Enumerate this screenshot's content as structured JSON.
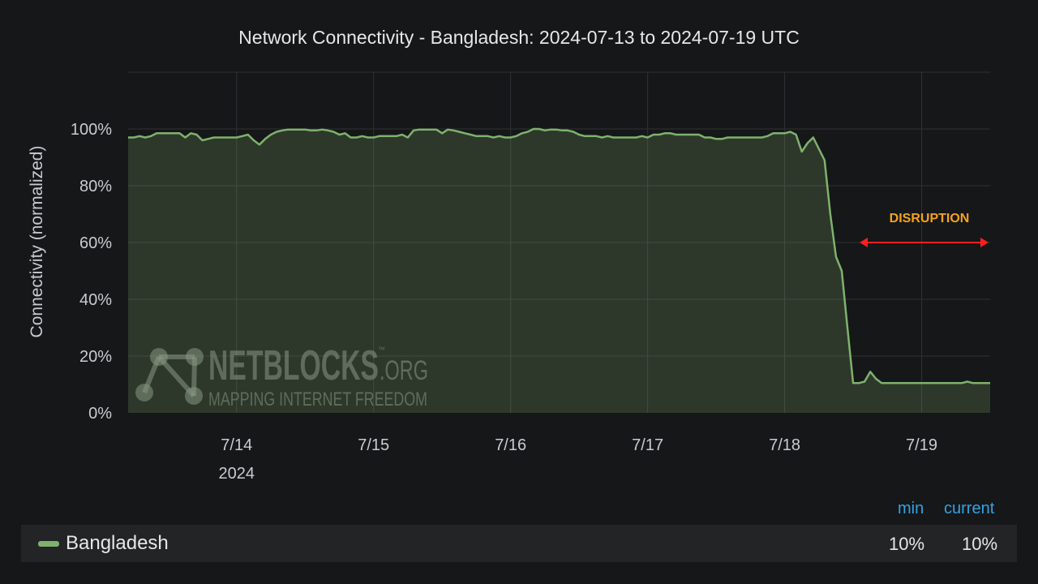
{
  "chart_data": {
    "type": "area",
    "title": "Network Connectivity - Bangladesh: 2024-07-13 to 2024-07-19 UTC",
    "ylabel": "Connectivity (normalized)",
    "xlabel": "",
    "x_range": [
      "2024-07-13T05:00",
      "2024-07-19T12:00"
    ],
    "ylim": [
      0,
      100
    ],
    "y_ticks": [
      "0%",
      "20%",
      "40%",
      "60%",
      "80%",
      "100%"
    ],
    "x_ticks": [
      {
        "date": "2024-07-14T00:00",
        "label": "7/14",
        "sublabel": "2024"
      },
      {
        "date": "2024-07-15T00:00",
        "label": "7/15"
      },
      {
        "date": "2024-07-16T00:00",
        "label": "7/16"
      },
      {
        "date": "2024-07-17T00:00",
        "label": "7/17"
      },
      {
        "date": "2024-07-18T00:00",
        "label": "7/18"
      },
      {
        "date": "2024-07-19T00:00",
        "label": "7/19"
      }
    ],
    "grid": true,
    "series": [
      {
        "name": "Bangladesh",
        "color": "#7eb26d",
        "points": [
          [
            "2024-07-13T05:00",
            97
          ],
          [
            "2024-07-13T06:00",
            97
          ],
          [
            "2024-07-13T07:00",
            97.5
          ],
          [
            "2024-07-13T08:00",
            97
          ],
          [
            "2024-07-13T09:00",
            97.5
          ],
          [
            "2024-07-13T10:00",
            98.5
          ],
          [
            "2024-07-13T11:00",
            98.5
          ],
          [
            "2024-07-13T12:00",
            98.5
          ],
          [
            "2024-07-13T13:00",
            98.5
          ],
          [
            "2024-07-13T14:00",
            98.5
          ],
          [
            "2024-07-13T15:00",
            97
          ],
          [
            "2024-07-13T16:00",
            98.5
          ],
          [
            "2024-07-13T17:00",
            98
          ],
          [
            "2024-07-13T18:00",
            96
          ],
          [
            "2024-07-13T19:00",
            96.5
          ],
          [
            "2024-07-13T20:00",
            97
          ],
          [
            "2024-07-13T21:00",
            97
          ],
          [
            "2024-07-13T22:00",
            97
          ],
          [
            "2024-07-13T23:00",
            97
          ],
          [
            "2024-07-14T00:00",
            97
          ],
          [
            "2024-07-14T01:00",
            97.5
          ],
          [
            "2024-07-14T02:00",
            98
          ],
          [
            "2024-07-14T03:00",
            96
          ],
          [
            "2024-07-14T04:00",
            94.5
          ],
          [
            "2024-07-14T05:00",
            96.5
          ],
          [
            "2024-07-14T06:00",
            98
          ],
          [
            "2024-07-14T07:00",
            99
          ],
          [
            "2024-07-14T08:00",
            99.5
          ],
          [
            "2024-07-14T09:00",
            99.8
          ],
          [
            "2024-07-14T10:00",
            99.8
          ],
          [
            "2024-07-14T11:00",
            99.8
          ],
          [
            "2024-07-14T12:00",
            99.8
          ],
          [
            "2024-07-14T13:00",
            99.5
          ],
          [
            "2024-07-14T14:00",
            99.5
          ],
          [
            "2024-07-14T15:00",
            99.8
          ],
          [
            "2024-07-14T16:00",
            99.5
          ],
          [
            "2024-07-14T17:00",
            99
          ],
          [
            "2024-07-14T18:00",
            98
          ],
          [
            "2024-07-14T19:00",
            98.5
          ],
          [
            "2024-07-14T20:00",
            97
          ],
          [
            "2024-07-14T21:00",
            97
          ],
          [
            "2024-07-14T22:00",
            97.5
          ],
          [
            "2024-07-14T23:00",
            97
          ],
          [
            "2024-07-15T00:00",
            97
          ],
          [
            "2024-07-15T01:00",
            97.5
          ],
          [
            "2024-07-15T02:00",
            97.5
          ],
          [
            "2024-07-15T03:00",
            97.5
          ],
          [
            "2024-07-15T04:00",
            97.5
          ],
          [
            "2024-07-15T05:00",
            98
          ],
          [
            "2024-07-15T06:00",
            97
          ],
          [
            "2024-07-15T07:00",
            99.5
          ],
          [
            "2024-07-15T08:00",
            99.8
          ],
          [
            "2024-07-15T09:00",
            99.8
          ],
          [
            "2024-07-15T10:00",
            99.8
          ],
          [
            "2024-07-15T11:00",
            99.8
          ],
          [
            "2024-07-15T12:00",
            98.5
          ],
          [
            "2024-07-15T13:00",
            99.8
          ],
          [
            "2024-07-15T14:00",
            99.5
          ],
          [
            "2024-07-15T15:00",
            99
          ],
          [
            "2024-07-15T16:00",
            98.5
          ],
          [
            "2024-07-15T17:00",
            98
          ],
          [
            "2024-07-15T18:00",
            97.5
          ],
          [
            "2024-07-15T19:00",
            97.5
          ],
          [
            "2024-07-15T20:00",
            97.5
          ],
          [
            "2024-07-15T21:00",
            97
          ],
          [
            "2024-07-15T22:00",
            97.5
          ],
          [
            "2024-07-15T23:00",
            97
          ],
          [
            "2024-07-16T00:00",
            97
          ],
          [
            "2024-07-16T01:00",
            97.5
          ],
          [
            "2024-07-16T02:00",
            98.5
          ],
          [
            "2024-07-16T03:00",
            99
          ],
          [
            "2024-07-16T04:00",
            100
          ],
          [
            "2024-07-16T05:00",
            100
          ],
          [
            "2024-07-16T06:00",
            99.5
          ],
          [
            "2024-07-16T07:00",
            99.8
          ],
          [
            "2024-07-16T08:00",
            99.8
          ],
          [
            "2024-07-16T09:00",
            99.5
          ],
          [
            "2024-07-16T10:00",
            99.5
          ],
          [
            "2024-07-16T11:00",
            99
          ],
          [
            "2024-07-16T12:00",
            98
          ],
          [
            "2024-07-16T13:00",
            97.5
          ],
          [
            "2024-07-16T14:00",
            97.5
          ],
          [
            "2024-07-16T15:00",
            97.5
          ],
          [
            "2024-07-16T16:00",
            97
          ],
          [
            "2024-07-16T17:00",
            97.5
          ],
          [
            "2024-07-16T18:00",
            97
          ],
          [
            "2024-07-16T19:00",
            97
          ],
          [
            "2024-07-16T20:00",
            97
          ],
          [
            "2024-07-16T21:00",
            97
          ],
          [
            "2024-07-16T22:00",
            97
          ],
          [
            "2024-07-16T23:00",
            97.5
          ],
          [
            "2024-07-17T00:00",
            97
          ],
          [
            "2024-07-17T01:00",
            98
          ],
          [
            "2024-07-17T02:00",
            98
          ],
          [
            "2024-07-17T03:00",
            98.5
          ],
          [
            "2024-07-17T04:00",
            98.5
          ],
          [
            "2024-07-17T05:00",
            98
          ],
          [
            "2024-07-17T06:00",
            98
          ],
          [
            "2024-07-17T07:00",
            98
          ],
          [
            "2024-07-17T08:00",
            98
          ],
          [
            "2024-07-17T09:00",
            98
          ],
          [
            "2024-07-17T10:00",
            97
          ],
          [
            "2024-07-17T11:00",
            97
          ],
          [
            "2024-07-17T12:00",
            96.5
          ],
          [
            "2024-07-17T13:00",
            96.5
          ],
          [
            "2024-07-17T14:00",
            97
          ],
          [
            "2024-07-17T15:00",
            97
          ],
          [
            "2024-07-17T16:00",
            97
          ],
          [
            "2024-07-17T17:00",
            97
          ],
          [
            "2024-07-17T18:00",
            97
          ],
          [
            "2024-07-17T19:00",
            97
          ],
          [
            "2024-07-17T20:00",
            97
          ],
          [
            "2024-07-17T21:00",
            97.5
          ],
          [
            "2024-07-17T22:00",
            98.5
          ],
          [
            "2024-07-17T23:00",
            98.5
          ],
          [
            "2024-07-18T00:00",
            98.5
          ],
          [
            "2024-07-18T01:00",
            99
          ],
          [
            "2024-07-18T02:00",
            98
          ],
          [
            "2024-07-18T03:00",
            92
          ],
          [
            "2024-07-18T04:00",
            95
          ],
          [
            "2024-07-18T05:00",
            97
          ],
          [
            "2024-07-18T06:00",
            93
          ],
          [
            "2024-07-18T07:00",
            89
          ],
          [
            "2024-07-18T08:00",
            70
          ],
          [
            "2024-07-18T09:00",
            55
          ],
          [
            "2024-07-18T10:00",
            50
          ],
          [
            "2024-07-18T11:00",
            30
          ],
          [
            "2024-07-18T12:00",
            10.5
          ],
          [
            "2024-07-18T13:00",
            10.5
          ],
          [
            "2024-07-18T14:00",
            11
          ],
          [
            "2024-07-18T15:00",
            14.5
          ],
          [
            "2024-07-18T16:00",
            12
          ],
          [
            "2024-07-18T17:00",
            10.5
          ],
          [
            "2024-07-18T18:00",
            10.5
          ],
          [
            "2024-07-18T19:00",
            10.5
          ],
          [
            "2024-07-18T20:00",
            10.5
          ],
          [
            "2024-07-18T21:00",
            10.5
          ],
          [
            "2024-07-18T22:00",
            10.5
          ],
          [
            "2024-07-18T23:00",
            10.5
          ],
          [
            "2024-07-19T00:00",
            10.5
          ],
          [
            "2024-07-19T01:00",
            10.5
          ],
          [
            "2024-07-19T02:00",
            10.5
          ],
          [
            "2024-07-19T03:00",
            10.5
          ],
          [
            "2024-07-19T04:00",
            10.5
          ],
          [
            "2024-07-19T05:00",
            10.5
          ],
          [
            "2024-07-19T06:00",
            10.5
          ],
          [
            "2024-07-19T07:00",
            10.5
          ],
          [
            "2024-07-19T08:00",
            11
          ],
          [
            "2024-07-19T09:00",
            10.5
          ],
          [
            "2024-07-19T10:00",
            10.5
          ],
          [
            "2024-07-19T11:00",
            10.5
          ],
          [
            "2024-07-19T12:00",
            10.5
          ]
        ]
      }
    ],
    "annotation": {
      "text": "DISRUPTION",
      "x_start": "2024-07-18T12:00",
      "x_end": "2024-07-19T12:00",
      "y": 60,
      "color": "#ff1f1f",
      "text_color": "#f4a21c"
    }
  },
  "watermark": {
    "main": "NETBLOCKS",
    "org": ".ORG",
    "tm": "™",
    "sub": "MAPPING INTERNET FREEDOM"
  },
  "legend": {
    "min_label": "min",
    "current_label": "current",
    "items": [
      {
        "name": "Bangladesh",
        "min": "10%",
        "current": "10%"
      }
    ]
  },
  "colors": {
    "background": "#161719",
    "grid": "#2f3134",
    "series": "#7eb26d",
    "area_fill": "#2c3a27",
    "legend_head": "#33a2e5"
  }
}
